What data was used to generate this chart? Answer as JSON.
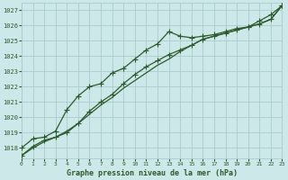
{
  "title": "Graphe pression niveau de la mer (hPa)",
  "bg_color": "#cce8e8",
  "grid_color": "#aacccc",
  "line_color": "#2d5a2d",
  "x_values": [
    0,
    1,
    2,
    3,
    4,
    5,
    6,
    7,
    8,
    9,
    10,
    11,
    12,
    13,
    14,
    15,
    16,
    17,
    18,
    19,
    20,
    21,
    22,
    23
  ],
  "series_upper_marked": [
    1018.0,
    1018.6,
    1018.7,
    1019.1,
    1020.5,
    1021.4,
    1022.0,
    1022.2,
    1022.9,
    1023.2,
    1023.8,
    1024.4,
    1024.8,
    1025.6,
    1025.3,
    1025.2,
    1025.3,
    1025.4,
    1025.6,
    1025.8,
    1025.9,
    1026.3,
    1026.7,
    1027.3
  ],
  "series_lower_marked": [
    1017.5,
    1018.1,
    1018.5,
    1018.7,
    1019.0,
    1019.6,
    1020.4,
    1021.0,
    1021.5,
    1022.2,
    1022.8,
    1023.3,
    1023.7,
    1024.1,
    1024.4,
    1024.7,
    1025.1,
    1025.3,
    1025.5,
    1025.7,
    1025.9,
    1026.1,
    1026.4,
    1027.3
  ],
  "series_smooth": [
    1017.5,
    1018.0,
    1018.4,
    1018.7,
    1019.1,
    1019.6,
    1020.2,
    1020.8,
    1021.3,
    1021.9,
    1022.4,
    1022.9,
    1023.4,
    1023.8,
    1024.3,
    1024.7,
    1025.1,
    1025.3,
    1025.5,
    1025.7,
    1025.9,
    1026.1,
    1026.4,
    1027.3
  ],
  "ylim": [
    1017.3,
    1027.5
  ],
  "yticks": [
    1018,
    1019,
    1020,
    1021,
    1022,
    1023,
    1024,
    1025,
    1026,
    1027
  ],
  "xlim": [
    0,
    23
  ],
  "xticks": [
    0,
    1,
    2,
    3,
    4,
    5,
    6,
    7,
    8,
    9,
    10,
    11,
    12,
    13,
    14,
    15,
    16,
    17,
    18,
    19,
    20,
    21,
    22,
    23
  ],
  "marker": "+",
  "marker_size": 4,
  "linewidth": 0.9,
  "tick_fontsize": 5,
  "xlabel_fontsize": 6
}
